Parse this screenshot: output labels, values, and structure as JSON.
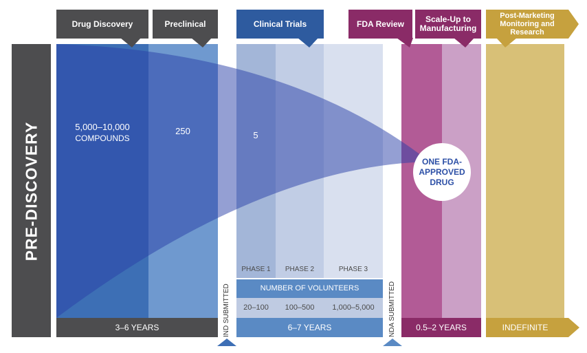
{
  "stages": {
    "pre_discovery": "PRE-DISCOVERY",
    "drug_discovery": "Drug Discovery",
    "preclinical": "Preclinical",
    "clinical_trials": "Clinical Trials",
    "fda_review": "FDA Review",
    "scale_up_line1": "Scale-Up to",
    "scale_up_line2": "Manufacturing",
    "post_marketing_line1": "Post-Marketing",
    "post_marketing_line2": "Monitoring and",
    "post_marketing_line3": "Research"
  },
  "counts": {
    "compounds_line1": "5,000–10,000",
    "compounds_line2": "COMPOUNDS",
    "preclinical": "250",
    "clinical": "5",
    "approved_line1": "ONE FDA-",
    "approved_line2": "APPROVED",
    "approved_line3": "DRUG"
  },
  "phases": {
    "phase1": "PHASE 1",
    "phase2": "PHASE 2",
    "phase3": "PHASE 3",
    "volunteers_header": "NUMBER OF VOLUNTEERS",
    "phase1_volunteers": "20–100",
    "phase2_volunteers": "100–500",
    "phase3_volunteers": "1,000–5,000"
  },
  "milestones": {
    "ind": "IND SUBMITTED",
    "nda": "NDA SUBMITTED"
  },
  "durations": {
    "discovery_preclinical": "3–6 YEARS",
    "clinical": "6–7 YEARS",
    "review_scaleup": "0.5–2 YEARS",
    "post_marketing": "INDEFINITE"
  },
  "colors": {
    "dark_gray": "#4d4d4f",
    "blue_dark": "#2c5aa0",
    "blue_mid": "#3d6fb5",
    "blue_light": "#5a8fca",
    "clinical_header": "#2e5b9f",
    "phase_light": "#c9d3e6",
    "purple": "#8a2b67",
    "purple_light": "#bd6fa4",
    "gold": "#c6a13e",
    "funnel": "#5566c8"
  }
}
